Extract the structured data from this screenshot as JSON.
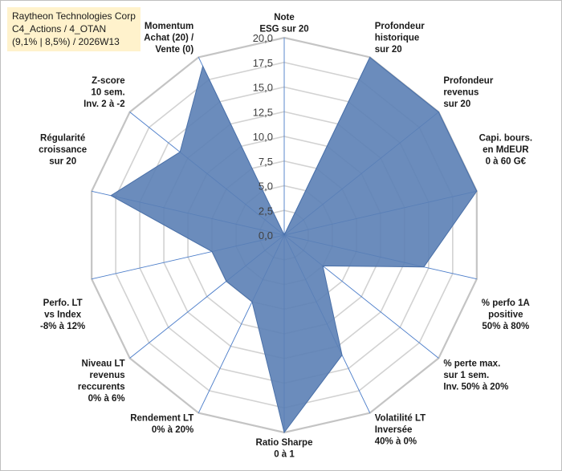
{
  "title_lines": [
    "Raytheon Technologies Corp",
    "C4_Actions / 4_OTAN",
    "(9,1% | 8,5%) / 2026W13"
  ],
  "chart_data": {
    "type": "radar",
    "title": "Raytheon Technologies Corp",
    "subtitle": "C4_Actions / 4_OTAN (9,1% | 8,5%) / 2026W13",
    "r_range": [
      0,
      20
    ],
    "r_ticks": [
      "0,0",
      "2,5",
      "5,0",
      "7,5",
      "10,0",
      "12,5",
      "15,0",
      "17,5",
      "20,0"
    ],
    "axes": [
      [
        "Note",
        "ESG sur 20"
      ],
      [
        "Profondeur",
        "historique",
        "sur 20"
      ],
      [
        "Profondeur",
        "revenus",
        "sur 20"
      ],
      [
        "Capi. bours.",
        "en MdEUR",
        "0 à 60 G€"
      ],
      [
        "% perfo 1A",
        "positive",
        "50% à 80%"
      ],
      [
        "% perte max.",
        "sur 1 sem.",
        "Inv. 50% à 20%"
      ],
      [
        "Volatilité LT",
        "Inversée",
        "40% à 0%"
      ],
      [
        "Ratio Sharpe",
        "0 à 1"
      ],
      [
        "Rendement LT",
        "0% à 20%"
      ],
      [
        "Niveau LT",
        "revenus",
        "reccurents",
        "0% à 6%"
      ],
      [
        "Perfo. LT",
        "vs Index",
        "-8% à 12%"
      ],
      [
        "Régularité",
        "croissance",
        "sur 20"
      ],
      [
        "Z-score",
        "10 sem.",
        "Inv. 2 à -2"
      ],
      [
        "Momentum",
        "Achat (20) /",
        "Vente (0)"
      ]
    ],
    "series": [
      {
        "name": "Raytheon Technologies Corp",
        "values": [
          0,
          20,
          20,
          20,
          14.5,
          5,
          13.5,
          20,
          7.5,
          7.5,
          7.5,
          18,
          13.5,
          19
        ],
        "color": "#5b7fb5"
      }
    ],
    "grid": true
  }
}
